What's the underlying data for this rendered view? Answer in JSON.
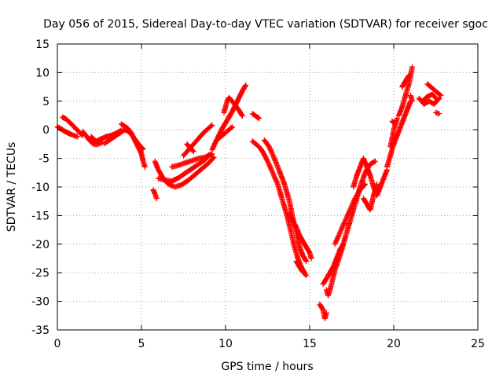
{
  "chart_data": {
    "type": "scatter",
    "title": "Day 056 of 2015, Sidereal Day-to-day VTEC variation (SDTVAR) for receiver sgoc",
    "xlabel": "GPS time / hours",
    "ylabel": "SDTVAR / TECUs",
    "xlim": [
      0,
      25
    ],
    "ylim": [
      -35,
      15
    ],
    "xticks": [
      "0",
      "5",
      "10",
      "15",
      "20",
      "25"
    ],
    "yticks": [
      "15",
      "10",
      "5",
      "0",
      "-5",
      "-10",
      "-15",
      "-20",
      "-25",
      "-30",
      "-35"
    ],
    "grid": true,
    "marker": "+",
    "color": "#ff0000",
    "series": [
      {
        "values": [
          [
            0.0,
            0.5
          ],
          [
            0.2,
            0.2
          ],
          [
            0.4,
            -0.2
          ],
          [
            0.6,
            -0.5
          ],
          [
            0.8,
            -0.8
          ],
          [
            1.0,
            -1.0
          ],
          [
            1.2,
            -1.2
          ]
        ]
      },
      {
        "values": [
          [
            0.3,
            2.2
          ],
          [
            0.5,
            1.9
          ],
          [
            0.7,
            1.4
          ],
          [
            0.9,
            0.8
          ],
          [
            1.1,
            0.2
          ],
          [
            1.3,
            -0.4
          ],
          [
            1.5,
            -1.0
          ]
        ]
      },
      {
        "values": [
          [
            1.5,
            -0.3
          ],
          [
            1.7,
            -1.0
          ],
          [
            1.9,
            -1.8
          ],
          [
            2.1,
            -2.4
          ],
          [
            2.3,
            -2.6
          ],
          [
            2.5,
            -2.4
          ],
          [
            2.7,
            -2.2
          ]
        ]
      },
      {
        "values": [
          [
            2.0,
            -1.2
          ],
          [
            2.3,
            -2.0
          ],
          [
            2.6,
            -1.6
          ],
          [
            2.9,
            -1.2
          ],
          [
            3.2,
            -1.0
          ],
          [
            3.5,
            -0.6
          ],
          [
            3.8,
            -0.1
          ]
        ]
      },
      {
        "values": [
          [
            2.8,
            -2.4
          ],
          [
            3.1,
            -1.8
          ],
          [
            3.4,
            -1.2
          ],
          [
            3.7,
            -0.6
          ],
          [
            4.0,
            0.0
          ],
          [
            4.3,
            -0.4
          ]
        ]
      },
      {
        "values": [
          [
            3.8,
            1.0
          ],
          [
            4.0,
            0.6
          ],
          [
            4.2,
            0.2
          ],
          [
            4.4,
            -0.6
          ],
          [
            4.6,
            -1.8
          ],
          [
            4.8,
            -3.0
          ],
          [
            5.0,
            -4.2
          ],
          [
            5.1,
            -5.5
          ],
          [
            5.2,
            -6.5
          ]
        ]
      },
      {
        "values": [
          [
            4.2,
            -0.2
          ],
          [
            4.5,
            -1.2
          ],
          [
            4.8,
            -2.4
          ],
          [
            5.1,
            -3.4
          ]
        ]
      },
      {
        "values": [
          [
            5.7,
            -10.5
          ],
          [
            5.8,
            -11.2
          ],
          [
            5.9,
            -12.0
          ]
        ]
      },
      {
        "values": [
          [
            5.8,
            -5.5
          ],
          [
            6.0,
            -7.0
          ],
          [
            6.3,
            -8.5
          ],
          [
            6.6,
            -9.5
          ],
          [
            7.0,
            -10.0
          ],
          [
            7.4,
            -9.6
          ],
          [
            7.8,
            -8.8
          ],
          [
            8.2,
            -7.8
          ],
          [
            8.6,
            -6.8
          ],
          [
            9.0,
            -5.8
          ],
          [
            9.3,
            -4.8
          ]
        ]
      },
      {
        "values": [
          [
            6.0,
            -8.5
          ],
          [
            6.4,
            -8.8
          ],
          [
            6.8,
            -9.0
          ],
          [
            7.2,
            -8.4
          ],
          [
            7.6,
            -7.6
          ],
          [
            8.0,
            -6.8
          ],
          [
            8.4,
            -6.0
          ],
          [
            8.8,
            -5.2
          ],
          [
            9.0,
            -4.4
          ]
        ]
      },
      {
        "values": [
          [
            6.8,
            -6.5
          ],
          [
            7.2,
            -6.2
          ],
          [
            7.6,
            -5.8
          ],
          [
            8.0,
            -5.4
          ],
          [
            8.4,
            -5.0
          ],
          [
            8.8,
            -4.8
          ],
          [
            9.2,
            -4.2
          ]
        ]
      },
      {
        "values": [
          [
            7.5,
            -4.5
          ],
          [
            7.8,
            -3.5
          ],
          [
            8.1,
            -2.5
          ],
          [
            8.4,
            -1.5
          ],
          [
            8.7,
            -0.5
          ],
          [
            9.0,
            0.3
          ],
          [
            9.2,
            0.8
          ]
        ]
      },
      {
        "values": [
          [
            7.7,
            -2.5
          ],
          [
            7.9,
            -3.2
          ],
          [
            8.1,
            -3.8
          ]
        ]
      },
      {
        "values": [
          [
            9.2,
            -3.5
          ],
          [
            9.4,
            -2.2
          ],
          [
            9.6,
            -1.0
          ],
          [
            9.8,
            0.2
          ],
          [
            10.0,
            1.2
          ],
          [
            10.2,
            2.2
          ],
          [
            10.4,
            3.2
          ],
          [
            10.6,
            4.4
          ],
          [
            10.8,
            5.6
          ],
          [
            11.0,
            6.8
          ],
          [
            11.2,
            7.8
          ]
        ]
      },
      {
        "values": [
          [
            9.9,
            3.0
          ],
          [
            10.0,
            4.0
          ],
          [
            10.1,
            5.0
          ],
          [
            10.2,
            5.6
          ],
          [
            10.4,
            5.0
          ],
          [
            10.6,
            4.2
          ],
          [
            10.8,
            3.4
          ],
          [
            11.0,
            2.4
          ]
        ]
      },
      {
        "values": [
          [
            9.6,
            -1.5
          ],
          [
            9.8,
            -1.0
          ],
          [
            10.0,
            -0.5
          ],
          [
            10.2,
            0.0
          ],
          [
            10.4,
            0.5
          ]
        ]
      },
      {
        "values": [
          [
            11.6,
            2.8
          ],
          [
            11.8,
            2.4
          ],
          [
            12.0,
            2.0
          ]
        ]
      },
      {
        "values": [
          [
            11.6,
            -2.0
          ],
          [
            11.8,
            -2.5
          ],
          [
            12.0,
            -3.0
          ],
          [
            12.2,
            -3.8
          ],
          [
            12.5,
            -5.5
          ],
          [
            12.8,
            -7.5
          ],
          [
            13.1,
            -9.5
          ],
          [
            13.3,
            -11.5
          ],
          [
            13.5,
            -13.5
          ],
          [
            13.7,
            -15.5
          ],
          [
            13.9,
            -18.0
          ],
          [
            14.1,
            -20.5
          ],
          [
            14.3,
            -22.5
          ],
          [
            14.5,
            -24.0
          ],
          [
            14.7,
            -25.0
          ]
        ]
      },
      {
        "values": [
          [
            12.3,
            -1.8
          ],
          [
            12.6,
            -3.0
          ],
          [
            12.9,
            -5.0
          ],
          [
            13.2,
            -7.2
          ],
          [
            13.5,
            -9.5
          ],
          [
            13.8,
            -12.5
          ],
          [
            14.0,
            -15.5
          ],
          [
            14.2,
            -18.0
          ],
          [
            14.4,
            -20.5
          ],
          [
            14.6,
            -22.0
          ],
          [
            14.8,
            -23.0
          ]
        ]
      },
      {
        "values": [
          [
            13.8,
            -14.5
          ],
          [
            14.0,
            -16.0
          ],
          [
            14.2,
            -17.0
          ],
          [
            14.4,
            -18.5
          ],
          [
            14.6,
            -19.5
          ],
          [
            14.8,
            -20.5
          ],
          [
            15.0,
            -21.5
          ],
          [
            15.1,
            -22.5
          ]
        ]
      },
      {
        "values": [
          [
            14.2,
            -23.0
          ],
          [
            14.5,
            -24.5
          ],
          [
            14.8,
            -25.5
          ]
        ]
      },
      {
        "values": [
          [
            15.6,
            -30.5
          ],
          [
            15.8,
            -31.5
          ],
          [
            15.9,
            -33.0
          ],
          [
            16.0,
            -32.0
          ]
        ]
      },
      {
        "values": [
          [
            15.8,
            -27.0
          ],
          [
            16.0,
            -26.0
          ],
          [
            16.2,
            -25.0
          ],
          [
            16.4,
            -24.0
          ],
          [
            16.6,
            -22.5
          ],
          [
            16.8,
            -21.0
          ],
          [
            17.0,
            -20.0
          ]
        ]
      },
      {
        "values": [
          [
            16.0,
            -28.0
          ],
          [
            16.1,
            -29.0
          ],
          [
            16.3,
            -27.0
          ],
          [
            16.5,
            -24.5
          ],
          [
            16.8,
            -22.0
          ],
          [
            17.1,
            -19.0
          ],
          [
            17.4,
            -16.0
          ],
          [
            17.7,
            -13.0
          ],
          [
            18.0,
            -10.0
          ],
          [
            18.3,
            -7.5
          ],
          [
            18.6,
            -6.0
          ],
          [
            18.9,
            -5.5
          ]
        ]
      },
      {
        "values": [
          [
            16.5,
            -20.0
          ],
          [
            16.8,
            -18.0
          ],
          [
            17.1,
            -16.0
          ],
          [
            17.4,
            -14.0
          ],
          [
            17.7,
            -12.0
          ],
          [
            18.0,
            -10.5
          ],
          [
            18.3,
            -9.5
          ]
        ]
      },
      {
        "values": [
          [
            17.6,
            -10.0
          ],
          [
            17.8,
            -8.0
          ],
          [
            18.0,
            -6.5
          ],
          [
            18.2,
            -5.0
          ],
          [
            18.4,
            -6.5
          ],
          [
            18.6,
            -8.0
          ],
          [
            18.8,
            -10.0
          ],
          [
            19.0,
            -11.5
          ],
          [
            19.2,
            -10.0
          ],
          [
            19.4,
            -8.5
          ],
          [
            19.6,
            -7.0
          ]
        ]
      },
      {
        "values": [
          [
            18.2,
            -12.0
          ],
          [
            18.4,
            -13.0
          ],
          [
            18.6,
            -14.0
          ],
          [
            18.8,
            -11.5
          ],
          [
            19.0,
            -9.5
          ]
        ]
      },
      {
        "values": [
          [
            19.6,
            -6.5
          ],
          [
            19.8,
            -4.5
          ],
          [
            20.0,
            -2.5
          ],
          [
            20.2,
            -1.0
          ],
          [
            20.4,
            0.5
          ],
          [
            20.6,
            2.0
          ],
          [
            20.8,
            3.5
          ],
          [
            21.0,
            5.0
          ]
        ]
      },
      {
        "values": [
          [
            19.8,
            -3.0
          ],
          [
            19.9,
            -1.5
          ],
          [
            20.0,
            0.0
          ],
          [
            20.1,
            1.0
          ],
          [
            20.2,
            2.0
          ]
        ]
      },
      {
        "values": [
          [
            19.9,
            1.5
          ],
          [
            20.0,
            1.2
          ]
        ]
      },
      {
        "values": [
          [
            20.3,
            2.5
          ],
          [
            20.5,
            4.0
          ],
          [
            20.7,
            6.0
          ],
          [
            20.9,
            8.0
          ],
          [
            21.0,
            9.5
          ],
          [
            21.1,
            11.0
          ]
        ]
      },
      {
        "values": [
          [
            20.5,
            7.5
          ],
          [
            20.7,
            8.5
          ],
          [
            20.9,
            9.5
          ]
        ]
      },
      {
        "values": [
          [
            21.0,
            6.0
          ],
          [
            21.1,
            5.0
          ]
        ]
      },
      {
        "values": [
          [
            21.5,
            5.5
          ],
          [
            21.8,
            4.5
          ],
          [
            22.1,
            5.0
          ],
          [
            22.4,
            4.5
          ],
          [
            22.7,
            5.5
          ]
        ]
      },
      {
        "values": [
          [
            22.0,
            8.0
          ],
          [
            22.2,
            7.5
          ],
          [
            22.4,
            7.0
          ],
          [
            22.6,
            6.5
          ],
          [
            22.8,
            6.0
          ]
        ]
      },
      {
        "values": [
          [
            22.5,
            3.0
          ],
          [
            22.7,
            2.8
          ]
        ]
      },
      {
        "values": [
          [
            21.7,
            5.0
          ],
          [
            22.0,
            5.8
          ],
          [
            22.3,
            6.2
          ],
          [
            22.6,
            5.2
          ]
        ]
      }
    ]
  }
}
